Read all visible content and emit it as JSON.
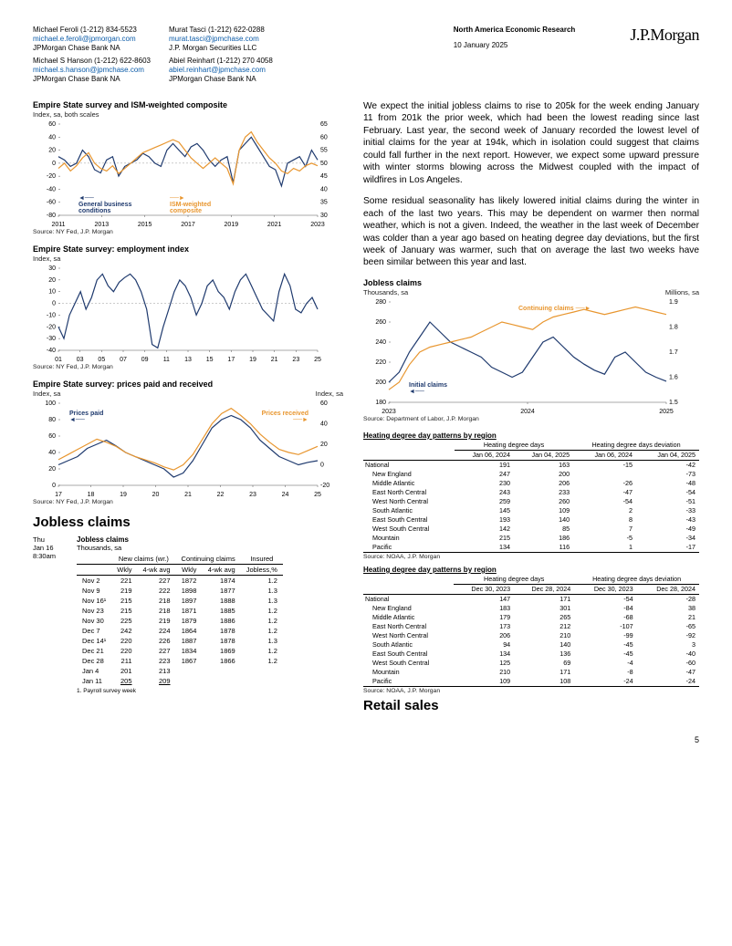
{
  "contacts": {
    "left": [
      {
        "name": "Michael Feroli  (1-212) 834-5523",
        "email": "michael.e.feroli@jpmorgan.com",
        "org": "JPMorgan Chase Bank NA"
      },
      {
        "name": "Michael S Hanson  (1-212) 622-8603",
        "email": "michael.s.hanson@jpmchase.com",
        "org": "JPMorgan Chase Bank NA"
      }
    ],
    "right": [
      {
        "name": "Murat Tasci  (1-212) 622-0288",
        "email": "murat.tasci@jpmchase.com",
        "org": "J.P. Morgan Securities LLC"
      },
      {
        "name": "Abiel Reinhart  (1-212) 270 4058",
        "email": "abiel.reinhart@jpmchase.com",
        "org": "JPMorgan Chase Bank NA"
      }
    ]
  },
  "header": {
    "region": "North America Economic Research",
    "date": "10 January 2025",
    "logo": "J.P.Morgan"
  },
  "charts": {
    "c1": {
      "title": "Empire State survey and ISM-weighted composite",
      "sub": "Index, sa, both scales",
      "source": "Source: NY Fed, J.P. Morgan",
      "colors": {
        "s1": "#1f3a6e",
        "s2": "#e8962f",
        "grid": "#e0e0e0",
        "axis": "#555"
      },
      "xlabels": [
        "2011",
        "2013",
        "2015",
        "2017",
        "2019",
        "2021",
        "2023"
      ],
      "yl": [
        -80,
        -60,
        -40,
        -20,
        0,
        20,
        40,
        60
      ],
      "yr": [
        30,
        35,
        40,
        45,
        50,
        55,
        60,
        65
      ],
      "ann1": "General business\nconditions",
      "ann2": "ISM-weighted\ncomposite",
      "s1": [
        10,
        5,
        -5,
        0,
        20,
        10,
        -10,
        -15,
        5,
        10,
        -20,
        -5,
        0,
        5,
        15,
        10,
        0,
        -5,
        20,
        30,
        20,
        10,
        25,
        30,
        20,
        5,
        -5,
        5,
        10,
        -30,
        20,
        30,
        40,
        25,
        10,
        -5,
        -10,
        -35,
        0,
        5,
        10,
        -5,
        20,
        5
      ],
      "s2": [
        48,
        50,
        47,
        49,
        52,
        54,
        50,
        48,
        47,
        49,
        46,
        48,
        50,
        52,
        54,
        55,
        56,
        57,
        58,
        59,
        58,
        55,
        52,
        50,
        48,
        50,
        52,
        50,
        48,
        42,
        55,
        60,
        62,
        58,
        55,
        52,
        50,
        47,
        46,
        48,
        47,
        49,
        50,
        49
      ]
    },
    "c2": {
      "title": "Empire State survey: employment index",
      "sub": "Index, sa",
      "source": "Source: NY Fed, J.P. Morgan",
      "color": "#1f3a6e",
      "xlabels": [
        "01",
        "03",
        "05",
        "07",
        "09",
        "11",
        "13",
        "15",
        "17",
        "19",
        "21",
        "23",
        "25"
      ],
      "yl": [
        -40,
        -30,
        -20,
        -10,
        0,
        10,
        20,
        30
      ],
      "s": [
        -20,
        -30,
        -10,
        0,
        10,
        -5,
        5,
        20,
        25,
        15,
        10,
        18,
        22,
        25,
        20,
        10,
        -5,
        -35,
        -38,
        -20,
        -5,
        10,
        20,
        15,
        5,
        -10,
        0,
        15,
        20,
        10,
        5,
        -5,
        10,
        20,
        25,
        15,
        5,
        -5,
        -10,
        -15,
        10,
        25,
        15,
        -5,
        -8,
        0,
        5,
        -5
      ]
    },
    "c3": {
      "title": "Empire State survey: prices paid and received",
      "sub_l": "Index, sa",
      "sub_r": "Index, sa",
      "source": "Source: NY Fed, J.P. Morgan",
      "colors": {
        "s1": "#1f3a6e",
        "s2": "#e8962f"
      },
      "xlabels": [
        "17",
        "18",
        "19",
        "20",
        "21",
        "22",
        "23",
        "24",
        "25"
      ],
      "yl": [
        0,
        20,
        40,
        60,
        80,
        100
      ],
      "yr": [
        -20,
        0,
        20,
        40,
        60
      ],
      "ann1": "Prices paid",
      "ann2": "Prices received",
      "s1": [
        25,
        30,
        35,
        45,
        50,
        55,
        48,
        40,
        35,
        30,
        25,
        20,
        10,
        15,
        30,
        50,
        70,
        80,
        85,
        80,
        70,
        55,
        45,
        35,
        30,
        25,
        28,
        30
      ],
      "s2": [
        5,
        10,
        15,
        20,
        25,
        22,
        18,
        12,
        8,
        5,
        2,
        -2,
        -5,
        0,
        10,
        25,
        40,
        50,
        55,
        48,
        40,
        30,
        22,
        15,
        12,
        10,
        14,
        18
      ]
    },
    "c4": {
      "title": "Jobless claims",
      "sub_l": "Thousands, sa",
      "sub_r": "Millions, sa",
      "source": "Source: Department of Labor, J.P. Morgan",
      "colors": {
        "s1": "#1f3a6e",
        "s2": "#e8962f"
      },
      "xlabels": [
        "2023",
        "2024",
        "2025"
      ],
      "yl": [
        180,
        200,
        220,
        240,
        260,
        280
      ],
      "yr": [
        1.5,
        1.6,
        1.7,
        1.8,
        1.9
      ],
      "ann1": "Initial claims",
      "ann2": "Continuing claims",
      "s1": [
        200,
        210,
        230,
        245,
        260,
        250,
        240,
        235,
        230,
        225,
        215,
        210,
        205,
        210,
        225,
        240,
        245,
        235,
        225,
        218,
        212,
        208,
        225,
        230,
        220,
        210,
        205,
        201
      ],
      "s2": [
        1.55,
        1.58,
        1.65,
        1.7,
        1.72,
        1.73,
        1.74,
        1.75,
        1.76,
        1.78,
        1.8,
        1.82,
        1.81,
        1.8,
        1.79,
        1.82,
        1.84,
        1.85,
        1.86,
        1.87,
        1.86,
        1.85,
        1.86,
        1.87,
        1.88,
        1.87,
        1.86,
        1.85
      ]
    }
  },
  "joblessSection": {
    "heading": "Jobless claims",
    "meta": {
      "day": "Thu",
      "date": "Jan 16",
      "time": "8:30am",
      "title": "Jobless claims",
      "unit": "Thousands, sa"
    },
    "cols": {
      "g1": "New claims (wr.)",
      "g2": "Continuing claims",
      "g3": "Insured",
      "c1": "Wkly",
      "c2": "4-wk avg",
      "c3": "Wkly",
      "c4": "4-wk avg",
      "c5": "Jobless,%"
    },
    "rows": [
      [
        "Nov 2",
        "221",
        "227",
        "1872",
        "1874",
        "1.2"
      ],
      [
        "Nov 9",
        "219",
        "222",
        "1898",
        "1877",
        "1.3"
      ],
      [
        "Nov 16¹",
        "215",
        "218",
        "1897",
        "1888",
        "1.3"
      ],
      [
        "Nov 23",
        "215",
        "218",
        "1871",
        "1885",
        "1.2"
      ],
      [
        "Nov 30",
        "225",
        "219",
        "1879",
        "1886",
        "1.2"
      ],
      [
        "Dec 7",
        "242",
        "224",
        "1864",
        "1878",
        "1.2"
      ],
      [
        "Dec 14¹",
        "220",
        "226",
        "1887",
        "1878",
        "1.3"
      ],
      [
        "Dec 21",
        "220",
        "227",
        "1834",
        "1869",
        "1.2"
      ],
      [
        "Dec 28",
        "211",
        "223",
        "1867",
        "1866",
        "1.2"
      ],
      [
        "Jan 4",
        "201",
        "213",
        "",
        "",
        ""
      ],
      [
        "Jan 11",
        "205",
        "209",
        "",
        "",
        ""
      ]
    ],
    "foot": "1. Payroll survey week"
  },
  "para1": "We expect the initial jobless claims to rise to 205k for the week ending January 11 from 201k the prior week, which had been the lowest reading since last February. Last year, the second week of January recorded the lowest level of initial claims for the year at 194k, which in isolation could suggest that claims could fall further in the next report. However, we expect some upward pressure with winter storms blowing across the Midwest coupled with the impact of wildfires in Los Angeles.",
  "para2": "Some residual seasonality has likely lowered initial claims during the winter in each of the last two years. This may be dependent on warmer then normal weather, which is not a given. Indeed, the weather in the last week of December was colder than a year ago based on heating degree day deviations, but the first week of January was warmer, such that on average the last two weeks have been similar between this year and last.",
  "hddA": {
    "title": "Heating degree day patterns by region",
    "g1": "Heating degree days",
    "g2": "Heating degree days deviation",
    "h": [
      "Jan 06, 2024",
      "Jan 04, 2025",
      "Jan 06, 2024",
      "Jan 04, 2025"
    ],
    "rows": [
      [
        "National",
        false,
        "191",
        "163",
        "-15",
        "-42"
      ],
      [
        "New England",
        true,
        "247",
        "200",
        "",
        "-73"
      ],
      [
        "Middle Atlantic",
        true,
        "230",
        "206",
        "-26",
        "-48"
      ],
      [
        "East North Central",
        true,
        "243",
        "233",
        "-47",
        "-54"
      ],
      [
        "West North Central",
        true,
        "259",
        "260",
        "-54",
        "-51"
      ],
      [
        "South Atlantic",
        true,
        "145",
        "109",
        "2",
        "-33"
      ],
      [
        "East South Central",
        true,
        "193",
        "140",
        "8",
        "-43"
      ],
      [
        "West South Central",
        true,
        "142",
        "85",
        "7",
        "-49"
      ],
      [
        "Mountain",
        true,
        "215",
        "186",
        "-5",
        "-34"
      ],
      [
        "Pacific",
        true,
        "134",
        "116",
        "1",
        "-17"
      ]
    ],
    "source": "Source: NOAA, J.P. Morgan"
  },
  "hddB": {
    "title": "Heating degree day patterns by region",
    "g1": "Heating degree days",
    "g2": "Heating degree days deviation",
    "h": [
      "Dec 30, 2023",
      "Dec 28, 2024",
      "Dec 30, 2023",
      "Dec 28, 2024"
    ],
    "rows": [
      [
        "National",
        false,
        "147",
        "171",
        "-54",
        "-28"
      ],
      [
        "New England",
        true,
        "183",
        "301",
        "-84",
        "38"
      ],
      [
        "Middle Atlantic",
        true,
        "179",
        "265",
        "-68",
        "21"
      ],
      [
        "East North Central",
        true,
        "173",
        "212",
        "-107",
        "-65"
      ],
      [
        "West North Central",
        true,
        "206",
        "210",
        "-99",
        "-92"
      ],
      [
        "South Atlantic",
        true,
        "94",
        "140",
        "-45",
        "3"
      ],
      [
        "East South Central",
        true,
        "134",
        "136",
        "-45",
        "-40"
      ],
      [
        "West South Central",
        true,
        "125",
        "69",
        "-4",
        "-60"
      ],
      [
        "Mountain",
        true,
        "210",
        "171",
        "-8",
        "-47"
      ],
      [
        "Pacific",
        true,
        "109",
        "108",
        "-24",
        "-24"
      ]
    ],
    "source": "Source: NOAA, J.P. Morgan"
  },
  "retailHeading": "Retail sales",
  "pageNumber": "5"
}
